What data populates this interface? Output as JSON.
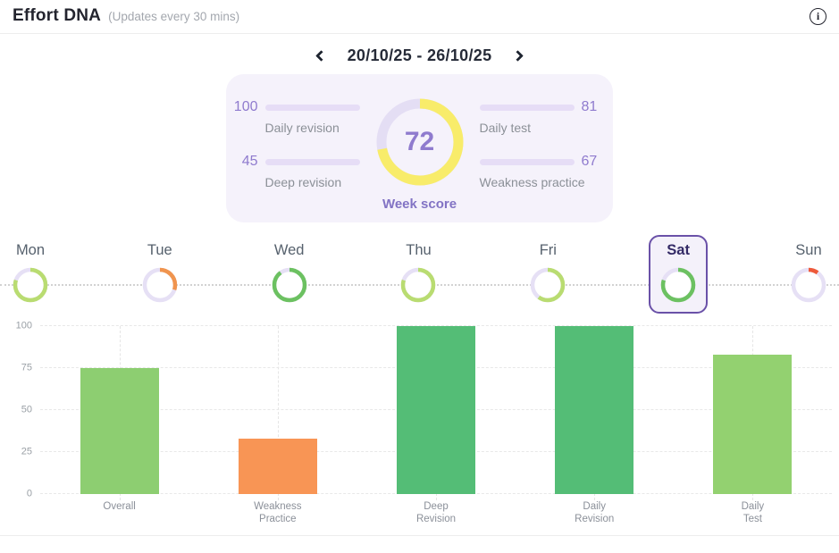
{
  "header": {
    "title": "Effort DNA",
    "subtitle": "(Updates every 30 mins)",
    "info_icon": "i"
  },
  "week_nav": {
    "prev_icon": "chevron-left",
    "date_range": "20/10/25 - 26/10/25",
    "next_icon": "chevron-right"
  },
  "week_summary": {
    "score": 72,
    "score_label": "Week score",
    "gauge_fill_color": "#f8ec6a",
    "gauge_track_color": "#e4def4",
    "progress_fill_color": "#9b82d8",
    "progress_track_color": "#e6ddf6",
    "stats": [
      {
        "name": "Daily revision",
        "value": 100,
        "side": "left"
      },
      {
        "name": "Deep revision",
        "value": 45,
        "side": "left"
      },
      {
        "name": "Daily test",
        "value": 81,
        "side": "right"
      },
      {
        "name": "Weakness practice",
        "value": 67,
        "side": "right"
      }
    ]
  },
  "days": [
    {
      "label": "Mon",
      "value": 80,
      "color": "#b9dc71",
      "selected": false
    },
    {
      "label": "Tue",
      "value": 30,
      "color": "#f0944e",
      "selected": false
    },
    {
      "label": "Wed",
      "value": 90,
      "color": "#6cc161",
      "selected": false
    },
    {
      "label": "Thu",
      "value": 80,
      "color": "#b9dc71",
      "selected": false
    },
    {
      "label": "Fri",
      "value": 60,
      "color": "#b9dc71",
      "selected": false
    },
    {
      "label": "Sat",
      "value": 80,
      "color": "#6cc161",
      "selected": true
    },
    {
      "label": "Sun",
      "value": 10,
      "color": "#ee5a3a",
      "selected": false
    }
  ],
  "day_ring_track_color": "#e6e0f5",
  "selected_day_border_color": "#6a51a8",
  "chart_data": {
    "type": "bar",
    "categories": [
      "Overall",
      "Weakness Practice",
      "Deep Revision",
      "Daily Revision",
      "Daily Test"
    ],
    "label_lines": [
      [
        "Overall"
      ],
      [
        "Weakness",
        "Practice"
      ],
      [
        "Deep",
        "Revision"
      ],
      [
        "Daily",
        "Revision"
      ],
      [
        "Daily",
        "Test"
      ]
    ],
    "values": [
      75,
      33,
      100,
      100,
      83
    ],
    "colors": [
      "#8dce71",
      "#f89555",
      "#54bd76",
      "#54bd76",
      "#93d170"
    ],
    "title": "",
    "xlabel": "",
    "ylabel": "",
    "ylim": [
      0,
      100
    ],
    "yticks": [
      0,
      25,
      50,
      75,
      100
    ],
    "grid": "dashed"
  }
}
